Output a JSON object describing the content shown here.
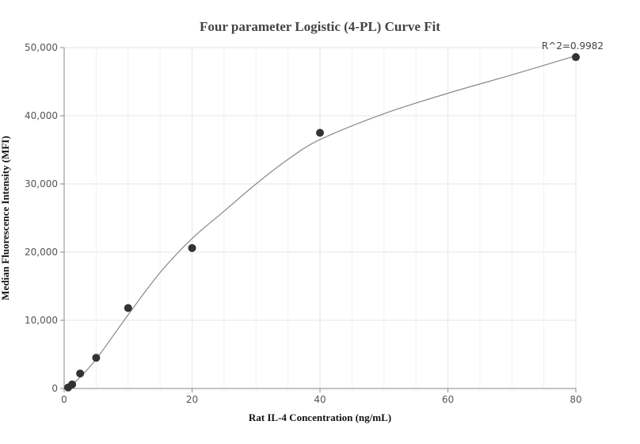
{
  "chart_data": {
    "type": "scatter",
    "title": "Four parameter Logistic (4-PL) Curve Fit",
    "xlabel": "Rat IL-4 Concentration (ng/mL)",
    "ylabel": "Median Fluorescence Intensity (MFI)",
    "xlim": [
      0,
      80
    ],
    "ylim": [
      0,
      50000
    ],
    "x_ticks": [
      0,
      20,
      40,
      60,
      80
    ],
    "x_tick_labels": [
      "0",
      "20",
      "40",
      "60",
      "80"
    ],
    "y_ticks": [
      0,
      10000,
      20000,
      30000,
      40000,
      50000
    ],
    "y_tick_labels": [
      "0",
      "10,000",
      "20,000",
      "30,000",
      "40,000",
      "50,000"
    ],
    "grid": true,
    "annotation": "R^2=0.9982",
    "colors": {
      "points": "#333333",
      "curve": "#888888",
      "grid": "#e6e6ee",
      "axis": "#888888"
    },
    "points": [
      {
        "x": 0.625,
        "y": 150
      },
      {
        "x": 1.25,
        "y": 600
      },
      {
        "x": 2.5,
        "y": 2200
      },
      {
        "x": 5,
        "y": 4500
      },
      {
        "x": 10,
        "y": 11800
      },
      {
        "x": 20,
        "y": 20600
      },
      {
        "x": 40,
        "y": 37500
      },
      {
        "x": 80,
        "y": 48600
      }
    ],
    "fit_curve": [
      {
        "x": 0.625,
        "y": 100
      },
      {
        "x": 2,
        "y": 1200
      },
      {
        "x": 5,
        "y": 4300
      },
      {
        "x": 10,
        "y": 10800
      },
      {
        "x": 15,
        "y": 17000
      },
      {
        "x": 20,
        "y": 22000
      },
      {
        "x": 25,
        "y": 26000
      },
      {
        "x": 30,
        "y": 30000
      },
      {
        "x": 35,
        "y": 33600
      },
      {
        "x": 40,
        "y": 36500
      },
      {
        "x": 50,
        "y": 40300
      },
      {
        "x": 60,
        "y": 43300
      },
      {
        "x": 70,
        "y": 46000
      },
      {
        "x": 80,
        "y": 48800
      }
    ]
  }
}
